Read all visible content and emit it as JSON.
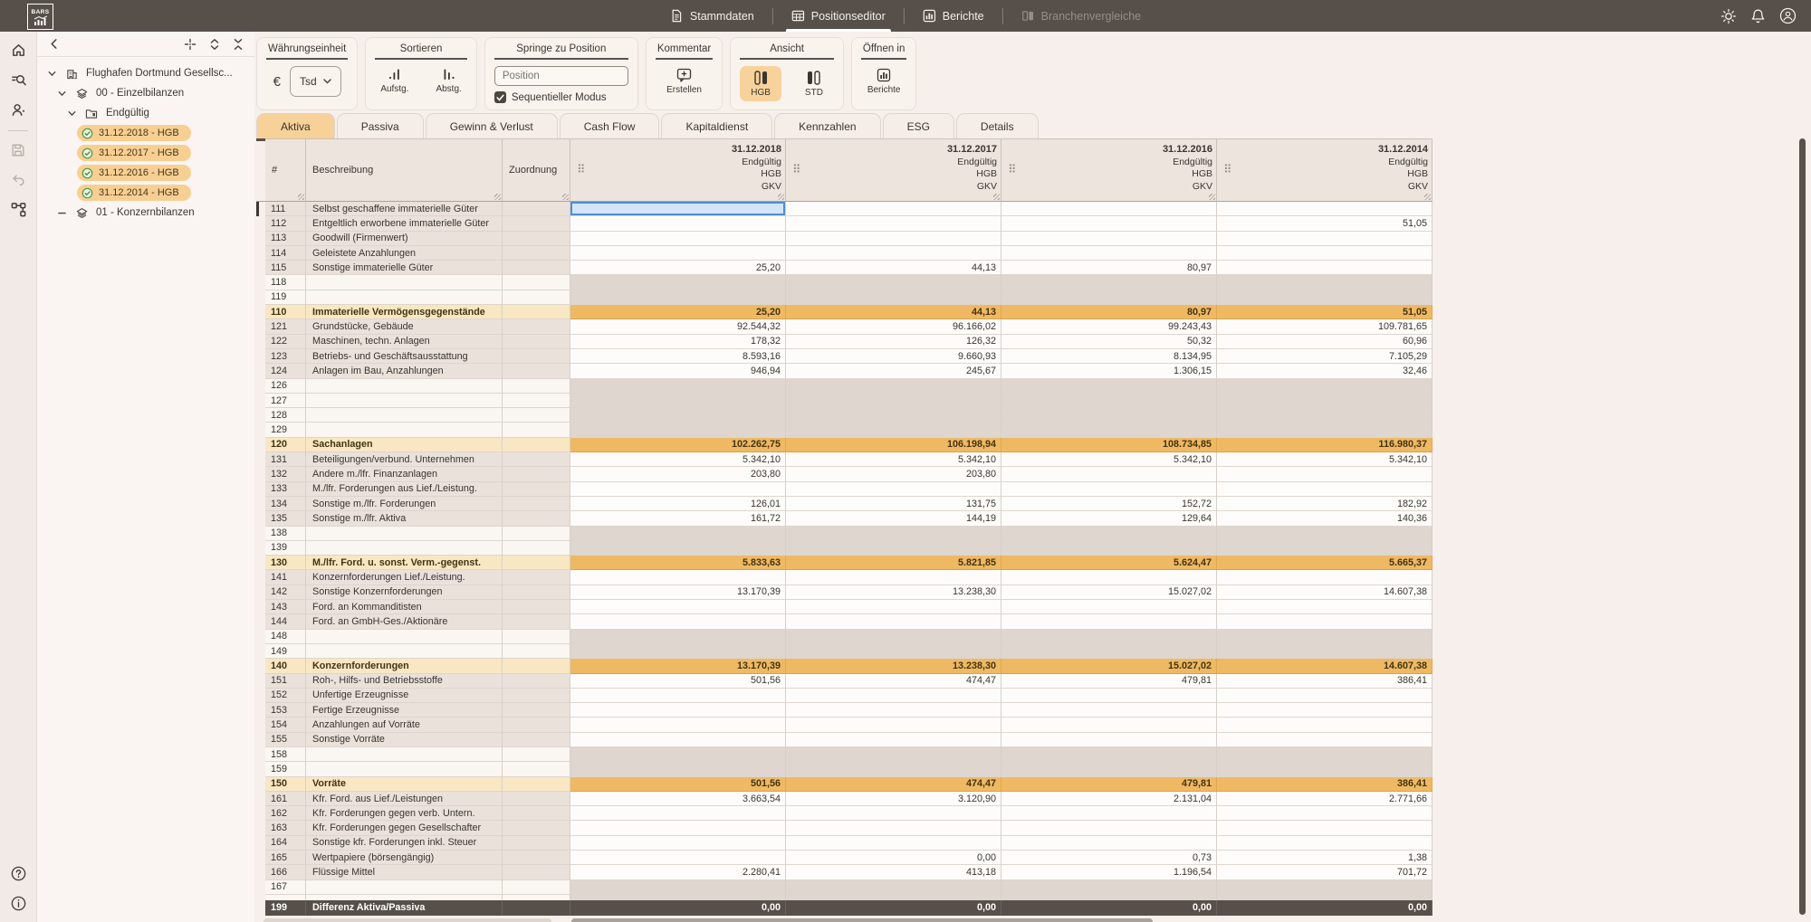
{
  "topbar": {
    "logo_text": "BARS",
    "nav": [
      {
        "label": "Stammdaten",
        "state": "normal"
      },
      {
        "label": "Positionseditor",
        "state": "active"
      },
      {
        "label": "Berichte",
        "state": "normal"
      },
      {
        "label": "Branchenvergleiche",
        "state": "disabled"
      }
    ]
  },
  "tree": {
    "nodes": [
      {
        "level": 0,
        "icon": "building",
        "chevron": "down",
        "label": "Flughafen Dortmund Gesellsc..."
      },
      {
        "level": 1,
        "icon": "layers",
        "chevron": "down",
        "label": "00 - Einzelbilanzen"
      },
      {
        "level": 2,
        "icon": "folder",
        "chevron": "down",
        "label": "Endgültig"
      },
      {
        "level": 3,
        "pill": true,
        "checked": true,
        "label": "31.12.2018 - HGB"
      },
      {
        "level": 3,
        "pill": true,
        "checked": true,
        "label": "31.12.2017 - HGB"
      },
      {
        "level": 3,
        "pill": true,
        "checked": true,
        "label": "31.12.2016 - HGB"
      },
      {
        "level": 3,
        "pill": true,
        "checked": true,
        "label": "31.12.2014 - HGB"
      },
      {
        "level": 1,
        "icon": "layers",
        "chevron": "minus",
        "label": "01 - Konzernbilanzen"
      }
    ]
  },
  "toolbar": {
    "currency": {
      "title": "Währungseinheit",
      "symbol": "€",
      "unit": "Tsd"
    },
    "sort": {
      "title": "Sortieren",
      "asc": "Aufstg.",
      "desc": "Abstg."
    },
    "jump": {
      "title": "Springe zu Position",
      "placeholder": "Position",
      "checkbox_label": "Sequentieller Modus",
      "checked": true
    },
    "comment": {
      "title": "Kommentar",
      "create": "Erstellen"
    },
    "view": {
      "title": "Ansicht",
      "hgb": "HGB",
      "std": "STD",
      "active": "HGB"
    },
    "open_in": {
      "title": "Öffnen in",
      "target": "Berichte"
    }
  },
  "tabs": [
    {
      "label": "Aktiva",
      "active": true
    },
    {
      "label": "Passiva"
    },
    {
      "label": "Gewinn & Verlust"
    },
    {
      "label": "Cash Flow"
    },
    {
      "label": "Kapitaldienst"
    },
    {
      "label": "Kennzahlen"
    },
    {
      "label": "ESG"
    },
    {
      "label": "Details"
    }
  ],
  "table": {
    "columns": {
      "num": "#",
      "beschreibung": "Beschreibung",
      "zuordnung": "Zuordnung"
    },
    "value_columns": [
      {
        "date": "31.12.2018",
        "sub": [
          "Endgültig",
          "HGB",
          "GKV"
        ]
      },
      {
        "date": "31.12.2017",
        "sub": [
          "Endgültig",
          "HGB",
          "GKV"
        ]
      },
      {
        "date": "31.12.2016",
        "sub": [
          "Endgültig",
          "HGB",
          "GKV"
        ]
      },
      {
        "date": "31.12.2014",
        "sub": [
          "Endgültig",
          "HGB",
          "GKV"
        ]
      }
    ],
    "selection": {
      "row": "111",
      "col": 0
    },
    "rows": [
      {
        "num": "111",
        "label": "Selbst geschaffene immaterielle Güter",
        "type": "item",
        "values": [
          "",
          "",
          "",
          ""
        ]
      },
      {
        "num": "112",
        "label": "Entgeltlich erworbene immaterielle Güter",
        "type": "item",
        "values": [
          "",
          "",
          "",
          "51,05"
        ]
      },
      {
        "num": "113",
        "label": "Goodwill (Firmenwert)",
        "type": "item",
        "values": [
          "",
          "",
          "",
          ""
        ]
      },
      {
        "num": "114",
        "label": "Geleistete Anzahlungen",
        "type": "item",
        "values": [
          "",
          "",
          "",
          ""
        ]
      },
      {
        "num": "115",
        "label": "Sonstige immaterielle Güter",
        "type": "item",
        "values": [
          "25,20",
          "44,13",
          "80,97",
          ""
        ]
      },
      {
        "num": "118",
        "label": "",
        "type": "gap",
        "values": [
          "",
          "",
          "",
          ""
        ]
      },
      {
        "num": "119",
        "label": "",
        "type": "gap",
        "values": [
          "",
          "",
          "",
          ""
        ]
      },
      {
        "num": "110",
        "label": "Immaterielle Vermögensgegenstände",
        "type": "sub",
        "values": [
          "25,20",
          "44,13",
          "80,97",
          "51,05"
        ]
      },
      {
        "num": "121",
        "label": "Grundstücke, Gebäude",
        "type": "item",
        "values": [
          "92.544,32",
          "96.166,02",
          "99.243,43",
          "109.781,65"
        ]
      },
      {
        "num": "122",
        "label": "Maschinen, techn. Anlagen",
        "type": "item",
        "values": [
          "178,32",
          "126,32",
          "50,32",
          "60,96"
        ]
      },
      {
        "num": "123",
        "label": "Betriebs- und Geschäftsausstattung",
        "type": "item",
        "values": [
          "8.593,16",
          "9.660,93",
          "8.134,95",
          "7.105,29"
        ]
      },
      {
        "num": "124",
        "label": "Anlagen im Bau, Anzahlungen",
        "type": "item",
        "values": [
          "946,94",
          "245,67",
          "1.306,15",
          "32,46"
        ]
      },
      {
        "num": "126",
        "label": "",
        "type": "gap",
        "values": [
          "",
          "",
          "",
          ""
        ]
      },
      {
        "num": "127",
        "label": "",
        "type": "gap",
        "values": [
          "",
          "",
          "",
          ""
        ]
      },
      {
        "num": "128",
        "label": "",
        "type": "gap",
        "values": [
          "",
          "",
          "",
          ""
        ]
      },
      {
        "num": "129",
        "label": "",
        "type": "gap",
        "values": [
          "",
          "",
          "",
          ""
        ]
      },
      {
        "num": "120",
        "label": "Sachanlagen",
        "type": "sub",
        "values": [
          "102.262,75",
          "106.198,94",
          "108.734,85",
          "116.980,37"
        ]
      },
      {
        "num": "131",
        "label": "Beteiligungen/verbund. Unternehmen",
        "type": "item",
        "values": [
          "5.342,10",
          "5.342,10",
          "5.342,10",
          "5.342,10"
        ]
      },
      {
        "num": "132",
        "label": "Andere m./lfr. Finanzanlagen",
        "type": "item",
        "values": [
          "203,80",
          "203,80",
          "",
          ""
        ]
      },
      {
        "num": "133",
        "label": "M./lfr. Forderungen aus Lief./Leistung.",
        "type": "item",
        "values": [
          "",
          "",
          "",
          ""
        ]
      },
      {
        "num": "134",
        "label": "Sonstige m./lfr. Forderungen",
        "type": "item",
        "values": [
          "126,01",
          "131,75",
          "152,72",
          "182,92"
        ]
      },
      {
        "num": "135",
        "label": "Sonstige m./lfr. Aktiva",
        "type": "item",
        "values": [
          "161,72",
          "144,19",
          "129,64",
          "140,36"
        ]
      },
      {
        "num": "138",
        "label": "",
        "type": "gap",
        "values": [
          "",
          "",
          "",
          ""
        ]
      },
      {
        "num": "139",
        "label": "",
        "type": "gap",
        "values": [
          "",
          "",
          "",
          ""
        ]
      },
      {
        "num": "130",
        "label": "M./lfr. Ford. u. sonst. Verm.-gegenst.",
        "type": "sub",
        "values": [
          "5.833,63",
          "5.821,85",
          "5.624,47",
          "5.665,37"
        ]
      },
      {
        "num": "141",
        "label": "Konzernforderungen Lief./Leistung.",
        "type": "item",
        "values": [
          "",
          "",
          "",
          ""
        ]
      },
      {
        "num": "142",
        "label": "Sonstige Konzernforderungen",
        "type": "item",
        "values": [
          "13.170,39",
          "13.238,30",
          "15.027,02",
          "14.607,38"
        ]
      },
      {
        "num": "143",
        "label": "Ford. an Kommanditisten",
        "type": "item",
        "values": [
          "",
          "",
          "",
          ""
        ]
      },
      {
        "num": "144",
        "label": "Ford. an GmbH-Ges./Aktionäre",
        "type": "item",
        "values": [
          "",
          "",
          "",
          ""
        ]
      },
      {
        "num": "148",
        "label": "",
        "type": "gap",
        "values": [
          "",
          "",
          "",
          ""
        ]
      },
      {
        "num": "149",
        "label": "",
        "type": "gap",
        "values": [
          "",
          "",
          "",
          ""
        ]
      },
      {
        "num": "140",
        "label": "Konzernforderungen",
        "type": "sub",
        "values": [
          "13.170,39",
          "13.238,30",
          "15.027,02",
          "14.607,38"
        ]
      },
      {
        "num": "151",
        "label": "Roh-, Hilfs- und Betriebsstoffe",
        "type": "item",
        "values": [
          "501,56",
          "474,47",
          "479,81",
          "386,41"
        ]
      },
      {
        "num": "152",
        "label": "Unfertige Erzeugnisse",
        "type": "item",
        "values": [
          "",
          "",
          "",
          ""
        ]
      },
      {
        "num": "153",
        "label": "Fertige Erzeugnisse",
        "type": "item",
        "values": [
          "",
          "",
          "",
          ""
        ]
      },
      {
        "num": "154",
        "label": "Anzahlungen auf Vorräte",
        "type": "item",
        "values": [
          "",
          "",
          "",
          ""
        ]
      },
      {
        "num": "155",
        "label": "Sonstige Vorräte",
        "type": "item",
        "values": [
          "",
          "",
          "",
          ""
        ]
      },
      {
        "num": "158",
        "label": "",
        "type": "gap",
        "values": [
          "",
          "",
          "",
          ""
        ]
      },
      {
        "num": "159",
        "label": "",
        "type": "gap",
        "values": [
          "",
          "",
          "",
          ""
        ]
      },
      {
        "num": "150",
        "label": "Vorräte",
        "type": "sub",
        "values": [
          "501,56",
          "474,47",
          "479,81",
          "386,41"
        ]
      },
      {
        "num": "161",
        "label": "Kfr. Ford. aus Lief./Leistungen",
        "type": "item",
        "values": [
          "3.663,54",
          "3.120,90",
          "2.131,04",
          "2.771,66"
        ]
      },
      {
        "num": "162",
        "label": "Kfr. Forderungen gegen verb. Untern.",
        "type": "item",
        "values": [
          "",
          "",
          "",
          ""
        ]
      },
      {
        "num": "163",
        "label": "Kfr. Forderungen gegen Gesellschafter",
        "type": "item",
        "values": [
          "",
          "",
          "",
          ""
        ]
      },
      {
        "num": "164",
        "label": "Sonstige kfr. Forderungen inkl. Steuer",
        "type": "item",
        "values": [
          "",
          "",
          "",
          ""
        ]
      },
      {
        "num": "165",
        "label": "Wertpapiere (börsengängig)",
        "type": "item",
        "values": [
          "",
          "0,00",
          "0,73",
          "1,38"
        ]
      },
      {
        "num": "166",
        "label": "Flüssige Mittel",
        "type": "item",
        "values": [
          "2.280,41",
          "413,18",
          "1.196,54",
          "701,72"
        ]
      },
      {
        "num": "167",
        "label": "",
        "type": "gap",
        "values": [
          "",
          "",
          "",
          ""
        ]
      },
      {
        "num": "",
        "label": "",
        "type": "gap",
        "values": [
          "",
          "",
          "",
          ""
        ]
      }
    ],
    "pinned_row": {
      "num": "199",
      "label": "Differenz Aktiva/Passiva",
      "type": "diff",
      "values": [
        "0,00",
        "0,00",
        "0,00",
        "0,00"
      ]
    }
  },
  "colors": {
    "topbar": "#57504a",
    "subtotal_orange": "#efb964",
    "pill_orange": "#f8cf92",
    "tab_active": "#f7d198",
    "selection_blue": "#d3e5f8",
    "check_green": "#4c9a43"
  }
}
